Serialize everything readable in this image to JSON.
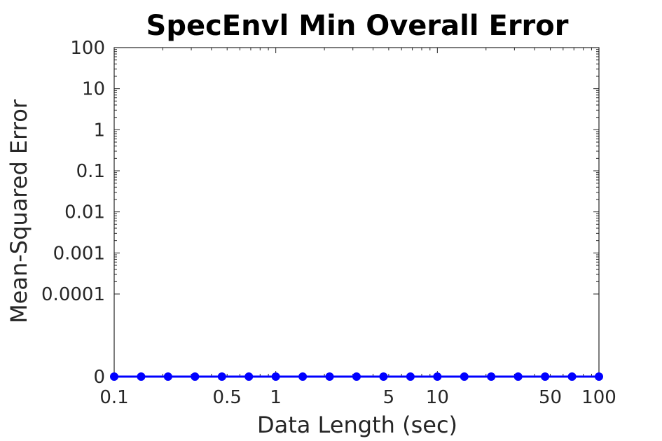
{
  "chart_data": {
    "type": "line",
    "title": "SpecEnvl Min Overall Error",
    "xlabel": "Data Length (sec)",
    "ylabel": "Mean-Squared Error",
    "xscale": "log",
    "yscale": "log",
    "xlim": [
      0.1,
      100
    ],
    "xticks": [
      0.1,
      0.5,
      1,
      5,
      10,
      50,
      100
    ],
    "xtick_labels": [
      "0.1",
      "0.5",
      "1",
      "5",
      "10",
      "50",
      "100"
    ],
    "yticks": [
      0,
      0.0001,
      0.001,
      0.01,
      0.1,
      1,
      10,
      100
    ],
    "ytick_labels": [
      "0",
      "0.0001",
      "0.001",
      "0.01",
      "0.1",
      "1",
      "10",
      "100"
    ],
    "grid": false,
    "series_color": "#0000ff",
    "x": [
      0.1,
      0.1468,
      0.2154,
      0.3162,
      0.4642,
      0.6813,
      1,
      1.468,
      2.154,
      3.162,
      4.642,
      6.813,
      10,
      14.68,
      21.54,
      31.62,
      46.42,
      68.13,
      100
    ],
    "y": [
      0,
      0,
      0,
      0,
      0,
      0,
      0,
      0,
      0,
      0,
      0,
      0,
      0,
      0,
      0,
      0,
      0,
      0,
      0
    ]
  }
}
